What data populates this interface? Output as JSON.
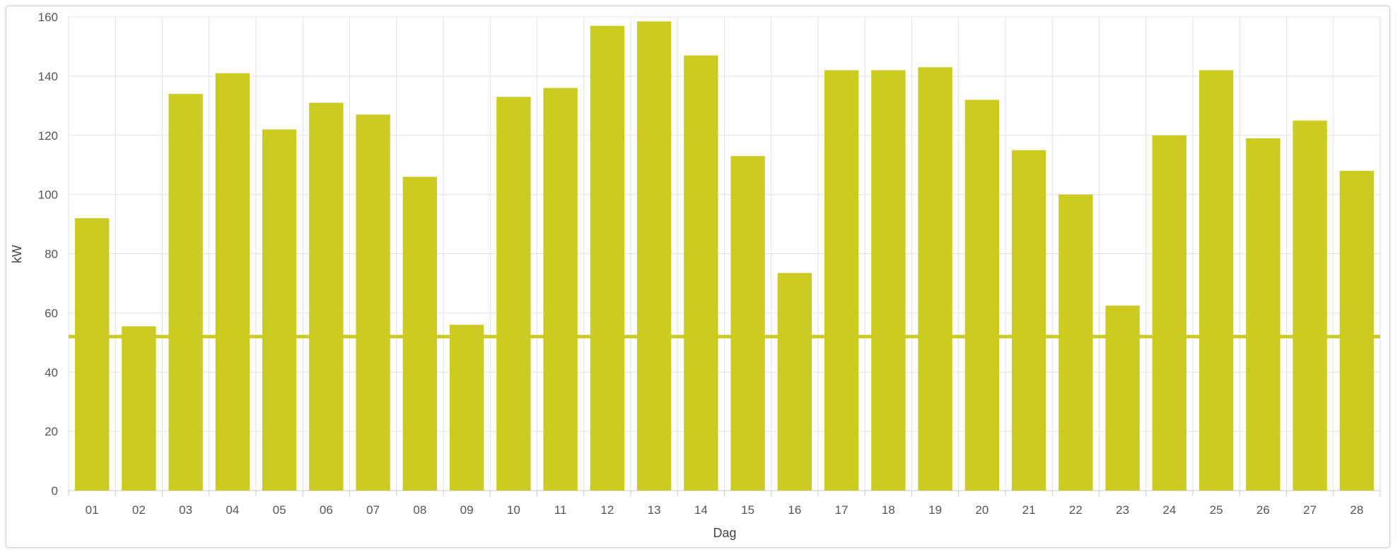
{
  "chart_data": {
    "type": "bar",
    "xlabel": "Dag",
    "ylabel": "kW",
    "ylim": [
      0,
      160
    ],
    "yticks": [
      0,
      20,
      40,
      60,
      80,
      100,
      120,
      140,
      160
    ],
    "grid": true,
    "categories": [
      "01",
      "02",
      "03",
      "04",
      "05",
      "06",
      "07",
      "08",
      "09",
      "10",
      "11",
      "12",
      "13",
      "14",
      "15",
      "16",
      "17",
      "18",
      "19",
      "20",
      "21",
      "22",
      "23",
      "24",
      "25",
      "26",
      "27",
      "28"
    ],
    "values": [
      92,
      55.5,
      134,
      141,
      122,
      131,
      127,
      106,
      56,
      133,
      136,
      157,
      158.5,
      147,
      113,
      73.5,
      142,
      142,
      143,
      132,
      115,
      100,
      62.5,
      120,
      142,
      119,
      125,
      108
    ],
    "reference_line": 52,
    "bar_color": "#cccb21",
    "line_color": "#cccb21",
    "grid_color": "#e2e2e2"
  }
}
